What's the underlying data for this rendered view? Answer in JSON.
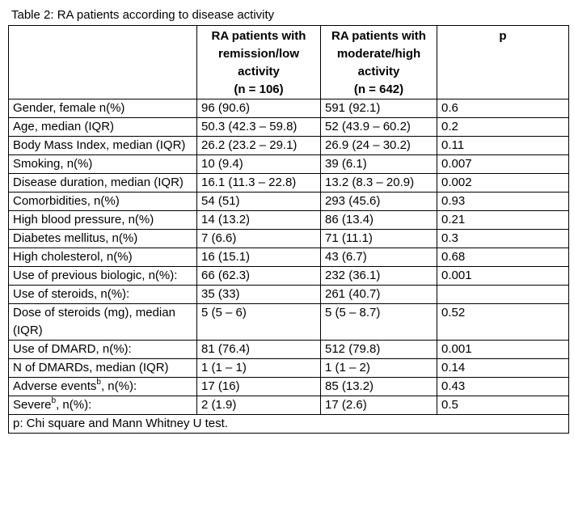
{
  "caption": "Table 2: RA patients according to disease activity",
  "headers": {
    "col1": "",
    "col2_lines": [
      "RA patients with",
      "remission/low",
      "activity",
      "(n = 106)"
    ],
    "col3_lines": [
      "RA patients with",
      "moderate/high",
      "activity",
      "(n = 642)"
    ],
    "col4": "p"
  },
  "rows": [
    {
      "pre": "Gender, female n(%)",
      "sup": "",
      "post": "",
      "v1": "96 (90.6)",
      "v2": "591 (92.1)",
      "p": "0.6"
    },
    {
      "pre": "Age, median (IQR)",
      "sup": "",
      "post": "",
      "v1": "50.3 (42.3 – 59.8)",
      "v2": "52 (43.9 – 60.2)",
      "p": "0.2"
    },
    {
      "pre": "Body Mass Index, median (IQR)",
      "sup": "",
      "post": "",
      "v1": "26.2 (23.2 – 29.1)",
      "v2": "26.9 (24 – 30.2)",
      "p": "0.11"
    },
    {
      "pre": "Smoking, n(%)",
      "sup": "",
      "post": "",
      "v1": "10 (9.4)",
      "v2": "39 (6.1)",
      "p": "0.007"
    },
    {
      "pre": "Disease duration, median (IQR)",
      "sup": "",
      "post": "",
      "v1": "16.1 (11.3 – 22.8)",
      "v2": "13.2 (8.3 – 20.9)",
      "p": "0.002"
    },
    {
      "pre": "Comorbidities, n(%)",
      "sup": "",
      "post": "",
      "v1": "54 (51)",
      "v2": "293 (45.6)",
      "p": "0.93"
    },
    {
      "pre": "High blood pressure, n(%)",
      "sup": "",
      "post": "",
      "v1": "14 (13.2)",
      "v2": "86 (13.4)",
      "p": "0.21",
      "indent": 1
    },
    {
      "pre": "Diabetes mellitus, n(%)",
      "sup": "",
      "post": "",
      "v1": "7 (6.6)",
      "v2": "71 (11.1)",
      "p": "0.3",
      "indent": 1
    },
    {
      "pre": "High cholesterol, n(%)",
      "sup": "",
      "post": "",
      "v1": "16 (15.1)",
      "v2": "43 (6.7)",
      "p": "0.68",
      "indent": 1
    },
    {
      "pre": "Use of previous biologic, n(%):",
      "sup": "",
      "post": "",
      "v1": "66 (62.3)",
      "v2": "232 (36.1)",
      "p": "0.001"
    },
    {
      "pre": "Use of steroids, n(%):",
      "sup": "",
      "post": "",
      "v1": "35 (33)",
      "v2": "261 (40.7)",
      "p": ""
    },
    {
      "pre": "Dose of steroids (mg), median (IQR)",
      "sup": "",
      "post": "",
      "v1": "5 (5 – 6)",
      "v2": "5 (5 – 8.7)",
      "p": "0.52",
      "indent": 1
    },
    {
      "pre": "Use of DMARD, n(%):",
      "sup": "",
      "post": "",
      "v1": "81 (76.4)",
      "v2": "512 (79.8)",
      "p": "0.001"
    },
    {
      "pre": "N of DMARDs, median (IQR)",
      "sup": "",
      "post": "",
      "v1": "1 (1 – 1)",
      "v2": "1 (1 – 2)",
      "p": "0.14",
      "indent": 1
    },
    {
      "pre": "Adverse events",
      "sup": "b",
      "post": ", n(%):",
      "v1": "17 (16)",
      "v2": "85 (13.2)",
      "p": "0.43"
    },
    {
      "pre": "Severe",
      "sup": "b",
      "post": ", n(%):",
      "v1": "2 (1.9)",
      "v2": "17 (2.6)",
      "p": "0.5",
      "indent": 2
    }
  ],
  "footnote": "p: Chi square and Mann Whitney U test."
}
